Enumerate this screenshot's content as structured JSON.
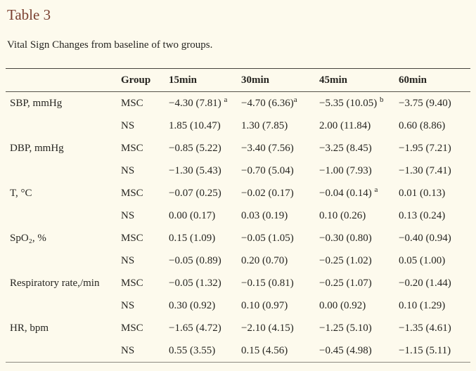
{
  "title": "Table 3",
  "caption": "Vital Sign Changes from baseline of two groups.",
  "colors": {
    "page_background": "#fdfaed",
    "title_color": "#7a4030",
    "text_color": "#262521",
    "rule_dark": "#44423c",
    "rule_light": "#8d8a80"
  },
  "table": {
    "columns": [
      "",
      "Group",
      "15min",
      "30min",
      "45min",
      "60min"
    ],
    "rows": [
      {
        "label": "SBP, mmHg",
        "group": "MSC",
        "values": [
          {
            "text": "−4.30 (7.81) ",
            "sup": "a"
          },
          {
            "text": "−4.70 (6.36)",
            "sup": "a"
          },
          {
            "text": "−5.35 (10.05) ",
            "sup": "b"
          },
          {
            "text": "−3.75 (9.40)",
            "sup": ""
          }
        ]
      },
      {
        "label": "",
        "group": "NS",
        "values": [
          {
            "text": "1.85 (10.47)",
            "sup": ""
          },
          {
            "text": "1.30 (7.85)",
            "sup": ""
          },
          {
            "text": "2.00 (11.84)",
            "sup": ""
          },
          {
            "text": "0.60 (8.86)",
            "sup": ""
          }
        ]
      },
      {
        "label": "DBP, mmHg",
        "group": "MSC",
        "values": [
          {
            "text": "−0.85 (5.22)",
            "sup": ""
          },
          {
            "text": "−3.40 (7.56)",
            "sup": ""
          },
          {
            "text": "−3.25 (8.45)",
            "sup": ""
          },
          {
            "text": "−1.95 (7.21)",
            "sup": ""
          }
        ]
      },
      {
        "label": "",
        "group": "NS",
        "values": [
          {
            "text": "−1.30 (5.43)",
            "sup": ""
          },
          {
            "text": "−0.70 (5.04)",
            "sup": ""
          },
          {
            "text": "−1.00 (7.93)",
            "sup": ""
          },
          {
            "text": "−1.30 (7.41)",
            "sup": ""
          }
        ]
      },
      {
        "label": "T, °C",
        "group": "MSC",
        "values": [
          {
            "text": "−0.07 (0.25)",
            "sup": ""
          },
          {
            "text": "−0.02 (0.17)",
            "sup": ""
          },
          {
            "text": "−0.04 (0.14) ",
            "sup": "a"
          },
          {
            "text": "0.01 (0.13)",
            "sup": ""
          }
        ]
      },
      {
        "label": "",
        "group": "NS",
        "values": [
          {
            "text": "0.00 (0.17)",
            "sup": ""
          },
          {
            "text": "0.03 (0.19)",
            "sup": ""
          },
          {
            "text": "0.10 (0.26)",
            "sup": ""
          },
          {
            "text": "0.13 (0.24)",
            "sup": ""
          }
        ]
      },
      {
        "label": "SpO₂, %",
        "group": "MSC",
        "values": [
          {
            "text": "0.15 (1.09)",
            "sup": ""
          },
          {
            "text": "−0.05 (1.05)",
            "sup": ""
          },
          {
            "text": "−0.30 (0.80)",
            "sup": ""
          },
          {
            "text": "−0.40 (0.94)",
            "sup": ""
          }
        ]
      },
      {
        "label": "",
        "group": "NS",
        "values": [
          {
            "text": "−0.05 (0.89)",
            "sup": ""
          },
          {
            "text": "0.20 (0.70)",
            "sup": ""
          },
          {
            "text": "−0.25 (1.02)",
            "sup": ""
          },
          {
            "text": "0.05 (1.00)",
            "sup": ""
          }
        ]
      },
      {
        "label": "Respiratory rate,/min",
        "group": "MSC",
        "values": [
          {
            "text": "−0.05 (1.32)",
            "sup": ""
          },
          {
            "text": "−0.15 (0.81)",
            "sup": ""
          },
          {
            "text": "−0.25 (1.07)",
            "sup": ""
          },
          {
            "text": "−0.20 (1.44)",
            "sup": ""
          }
        ]
      },
      {
        "label": "",
        "group": "NS",
        "values": [
          {
            "text": "0.30 (0.92)",
            "sup": ""
          },
          {
            "text": "0.10 (0.97)",
            "sup": ""
          },
          {
            "text": "0.00 (0.92)",
            "sup": ""
          },
          {
            "text": "0.10 (1.29)",
            "sup": ""
          }
        ]
      },
      {
        "label": "HR, bpm",
        "group": "MSC",
        "values": [
          {
            "text": "−1.65 (4.72)",
            "sup": ""
          },
          {
            "text": "−2.10 (4.15)",
            "sup": ""
          },
          {
            "text": "−1.25 (5.10)",
            "sup": ""
          },
          {
            "text": "−1.35 (4.61)",
            "sup": ""
          }
        ]
      },
      {
        "label": "",
        "group": "NS",
        "values": [
          {
            "text": "0.55 (3.55)",
            "sup": ""
          },
          {
            "text": "0.15 (4.56)",
            "sup": ""
          },
          {
            "text": "−0.45 (4.98)",
            "sup": ""
          },
          {
            "text": "−1.15 (5.11)",
            "sup": ""
          }
        ]
      }
    ]
  }
}
